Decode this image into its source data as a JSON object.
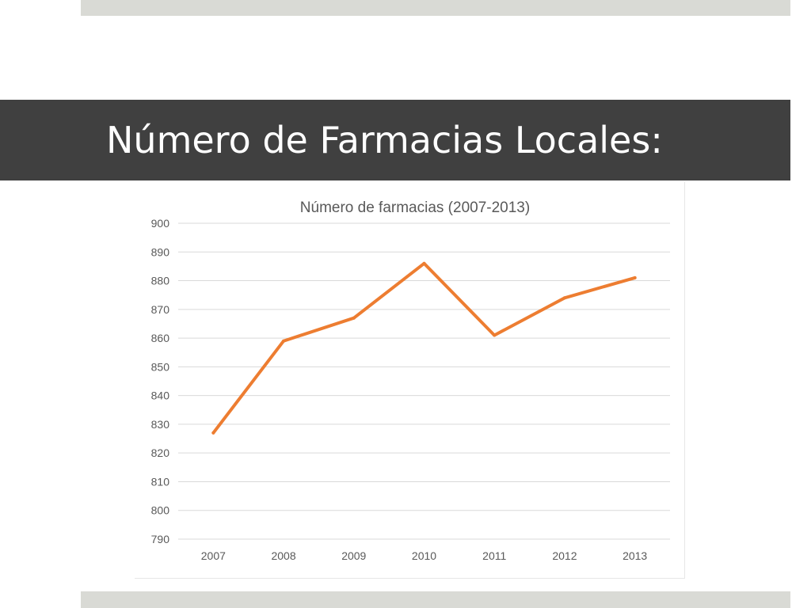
{
  "slide": {
    "title": "Número de Farmacias Locales:"
  },
  "colors": {
    "title_band": "#404040",
    "accent_bars": "#d9dad5",
    "series_line": "#ed7d31",
    "gridline": "#d9d9d9",
    "label_text": "#595959"
  },
  "chart_data": {
    "type": "line",
    "title": "Número de farmacias (2007-2013)",
    "xlabel": "",
    "ylabel": "",
    "categories": [
      "2007",
      "2008",
      "2009",
      "2010",
      "2011",
      "2012",
      "2013"
    ],
    "series": [
      {
        "values": [
          827,
          859,
          867,
          886,
          861,
          874,
          881
        ],
        "color": "#ed7d31"
      }
    ],
    "ylim": [
      790,
      900
    ],
    "yticks": [
      900,
      890,
      880,
      870,
      860,
      850,
      840,
      830,
      820,
      810,
      800,
      790
    ],
    "grid": true,
    "legend": "none"
  }
}
